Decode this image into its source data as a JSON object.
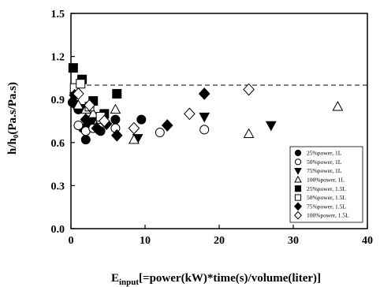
{
  "chart_data": {
    "type": "scatter",
    "title": "",
    "xlabel_main": "E",
    "xlabel_sub": "input",
    "xlabel_rest": "[=power(kW)*time(s)/volume(liter)]",
    "ylabel": "h/h₀(Pa.s/Pa.s)",
    "xlim": [
      0,
      40
    ],
    "ylim": [
      0.0,
      1.5
    ],
    "x_ticks": [
      "0",
      "10",
      "20",
      "30",
      "40"
    ],
    "y_ticks": [
      "0.0",
      "0.3",
      "0.6",
      "0.9",
      "1.2",
      "1.5"
    ],
    "reference_line_y": 1.0,
    "grid": false,
    "legend_position": "bottom-right",
    "series": [
      {
        "name": "25%power, 1L",
        "marker": "circle",
        "filled": true,
        "x": [
          0.2,
          0.5,
          1.0,
          1.6,
          2.0,
          2.6,
          4.0,
          6.0,
          9.5
        ],
        "y": [
          0.88,
          0.87,
          0.83,
          0.7,
          0.62,
          0.73,
          0.68,
          0.76,
          0.76
        ]
      },
      {
        "name": "50%power, 1L",
        "marker": "circle",
        "filled": false,
        "x": [
          1.0,
          2.0,
          3.0,
          6.0,
          12.0,
          18.0
        ],
        "y": [
          0.72,
          0.68,
          0.7,
          0.7,
          0.67,
          0.69
        ]
      },
      {
        "name": "75%power, 1L",
        "marker": "triangle-down",
        "filled": true,
        "x": [
          0.5,
          2.0,
          3.0,
          9.0,
          18.0,
          27.0
        ],
        "y": [
          0.92,
          0.84,
          0.76,
          0.63,
          0.78,
          0.72
        ]
      },
      {
        "name": "100%power, 1L",
        "marker": "triangle-up",
        "filled": false,
        "x": [
          1.0,
          2.0,
          3.0,
          4.0,
          6.0,
          8.5,
          24.0,
          36.0
        ],
        "y": [
          0.86,
          0.83,
          0.8,
          0.76,
          0.83,
          0.62,
          0.66,
          0.85
        ]
      },
      {
        "name": "25%power, 1.5L",
        "marker": "square",
        "filled": true,
        "x": [
          0.3,
          1.5,
          3.0,
          4.5,
          6.2
        ],
        "y": [
          1.12,
          1.04,
          0.89,
          0.8,
          0.94
        ]
      },
      {
        "name": "50%power, 1.5L",
        "marker": "square",
        "filled": false,
        "x": [
          0.5,
          1.3,
          2.5,
          4.0
        ],
        "y": [
          0.98,
          1.01,
          0.85,
          0.78
        ]
      },
      {
        "name": "75%power, 1.5L",
        "marker": "diamond",
        "filled": true,
        "x": [
          0.5,
          2.0,
          3.5,
          4.8,
          6.2,
          13.0,
          18.0
        ],
        "y": [
          0.93,
          0.76,
          0.7,
          0.73,
          0.65,
          0.72,
          0.94
        ]
      },
      {
        "name": "100%power, 1.5L",
        "marker": "diamond",
        "filled": false,
        "x": [
          1.0,
          2.5,
          4.5,
          8.5,
          16.0,
          24.0
        ],
        "y": [
          0.94,
          0.86,
          0.75,
          0.7,
          0.8,
          0.97
        ]
      }
    ]
  }
}
